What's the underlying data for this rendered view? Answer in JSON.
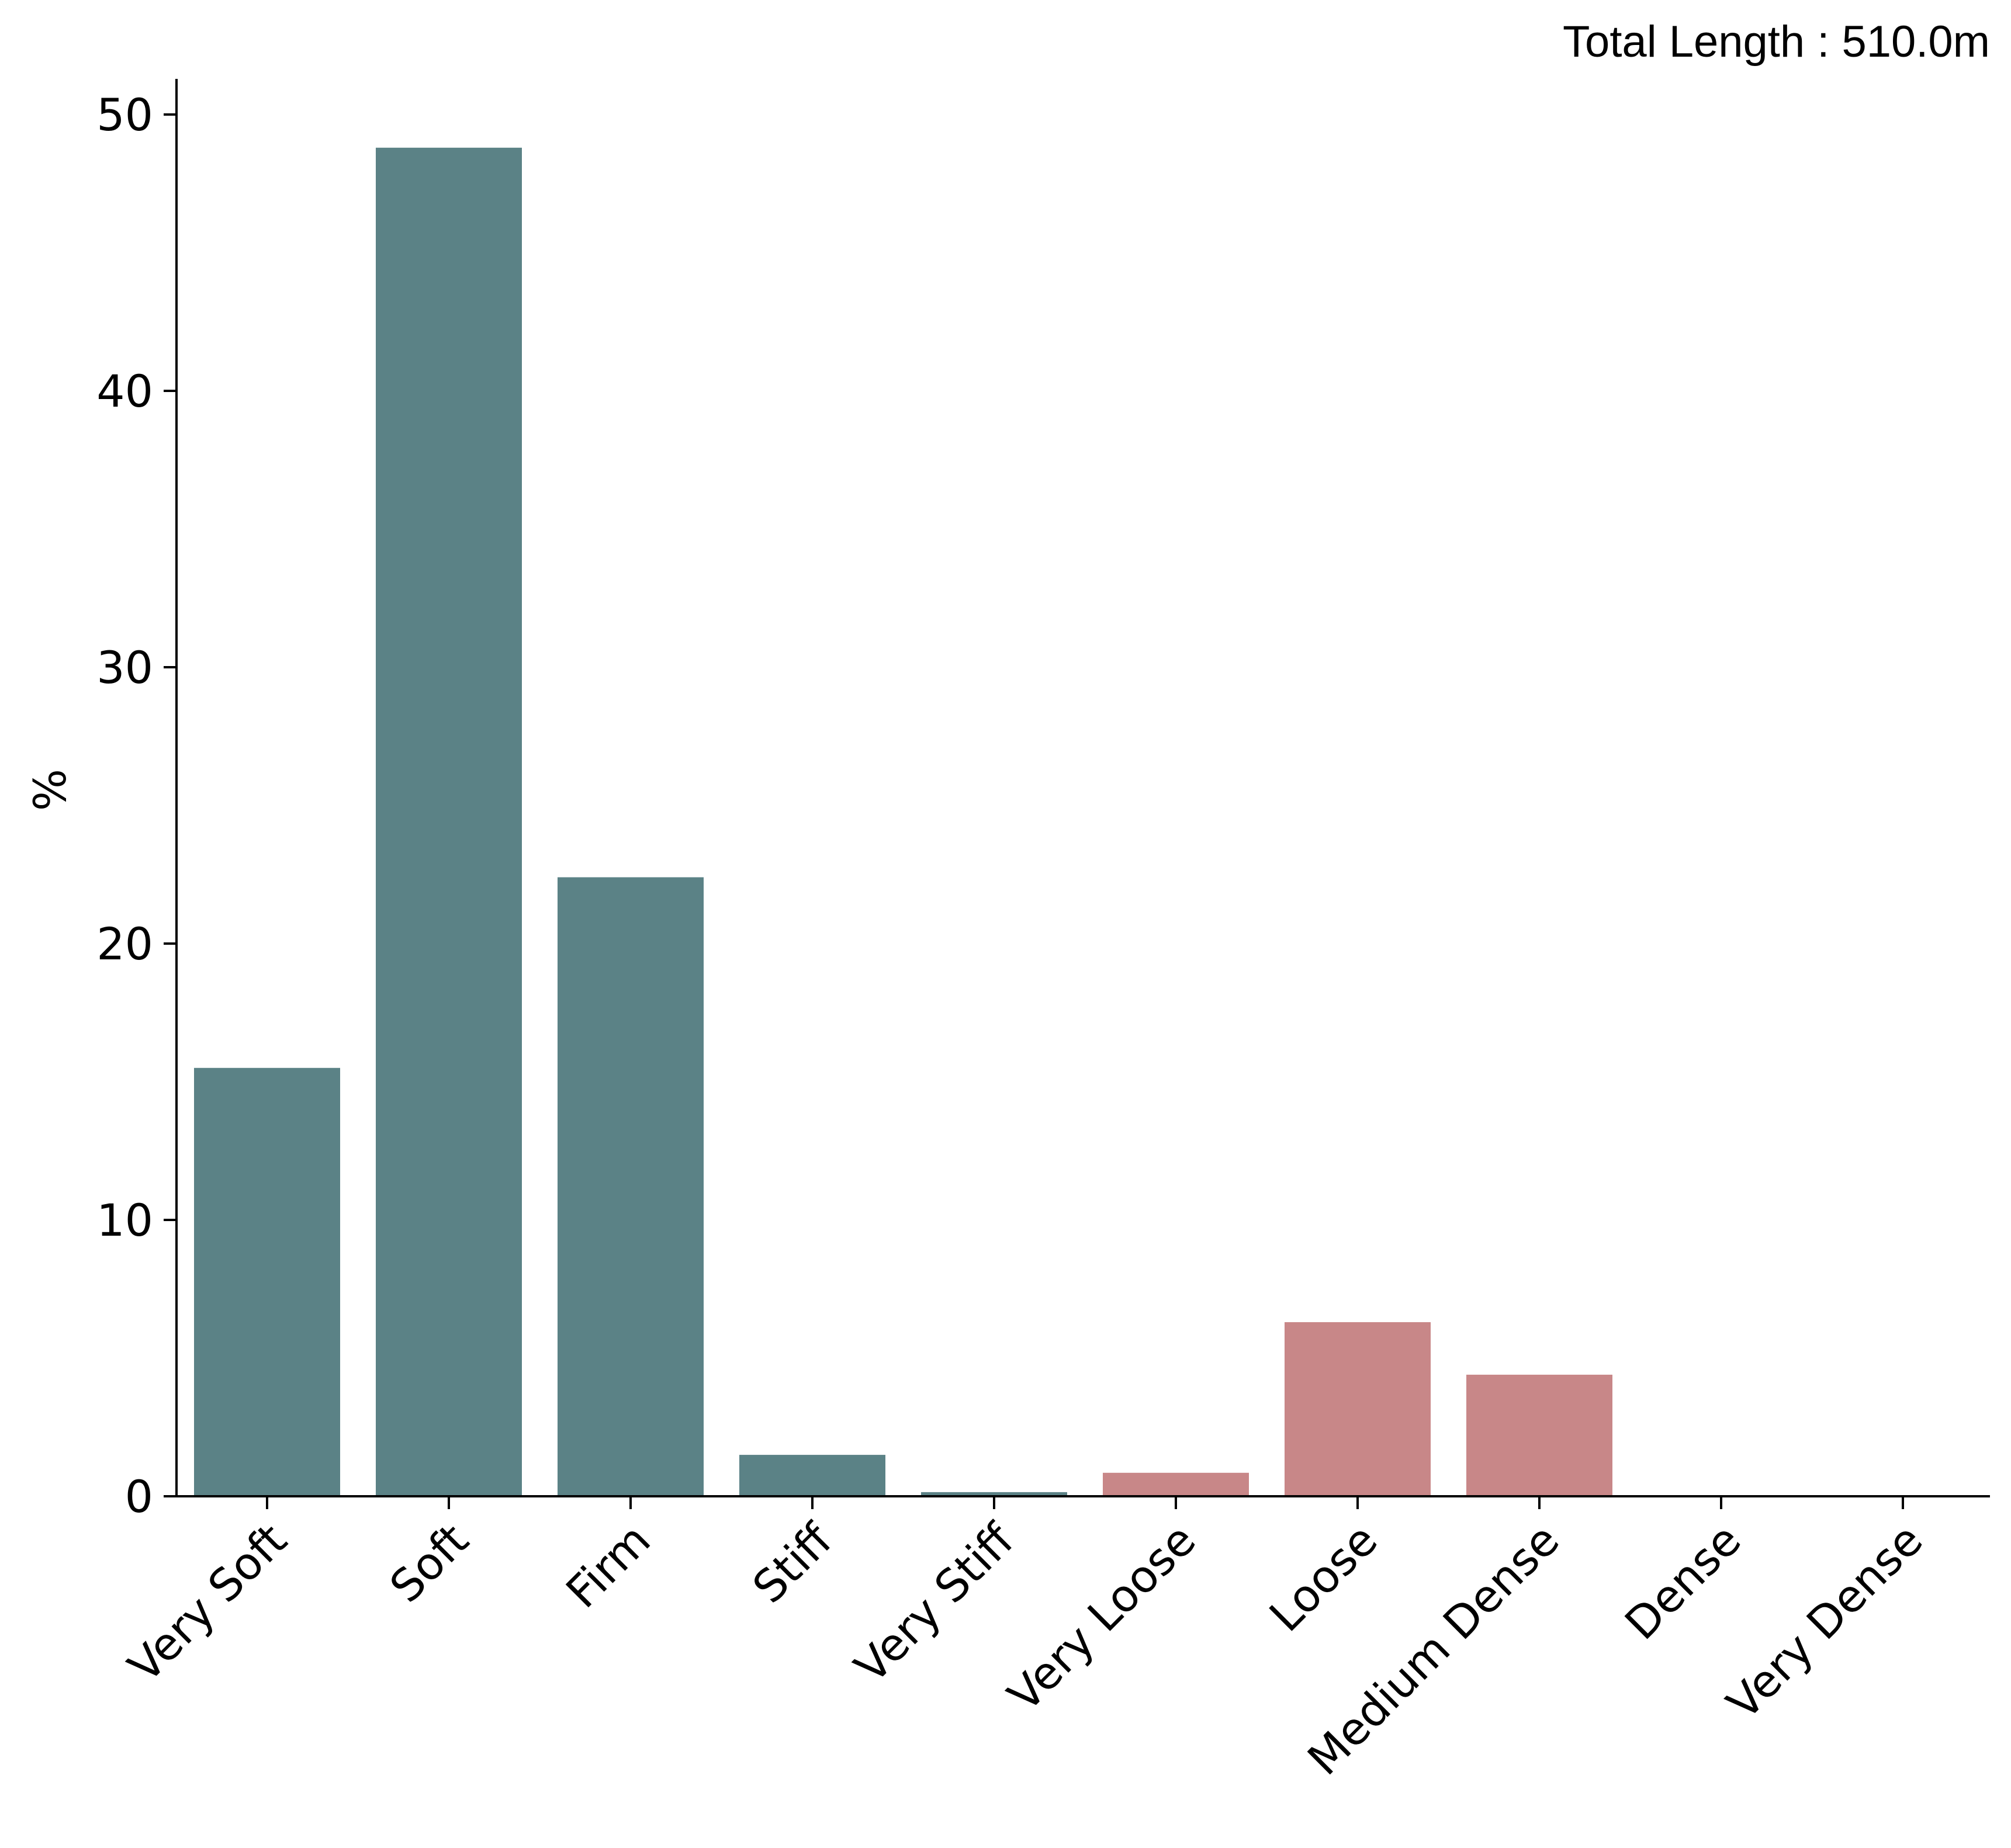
{
  "chart_data": {
    "type": "bar",
    "title": "",
    "xlabel": "",
    "ylabel": "%",
    "annotation": "Total Length : 510.0m",
    "categories": [
      "Very Soft",
      "Soft",
      "Firm",
      "Stiff",
      "Very Stiff",
      "Very Loose",
      "Loose",
      "Medium Dense",
      "Dense",
      "Very Dense"
    ],
    "values": [
      15.5,
      48.8,
      22.4,
      1.5,
      0.15,
      0.85,
      6.3,
      4.4,
      0,
      0
    ],
    "bar_colors": [
      "#5b8286",
      "#5b8286",
      "#5b8286",
      "#5b8286",
      "#5b8286",
      "#c88788",
      "#c88788",
      "#c88788",
      "#c88788",
      "#c88788"
    ],
    "yticks": [
      "0",
      "10",
      "20",
      "30",
      "40",
      "50"
    ],
    "ylim": [
      0,
      51.3
    ],
    "grid": false,
    "legend": "none"
  }
}
